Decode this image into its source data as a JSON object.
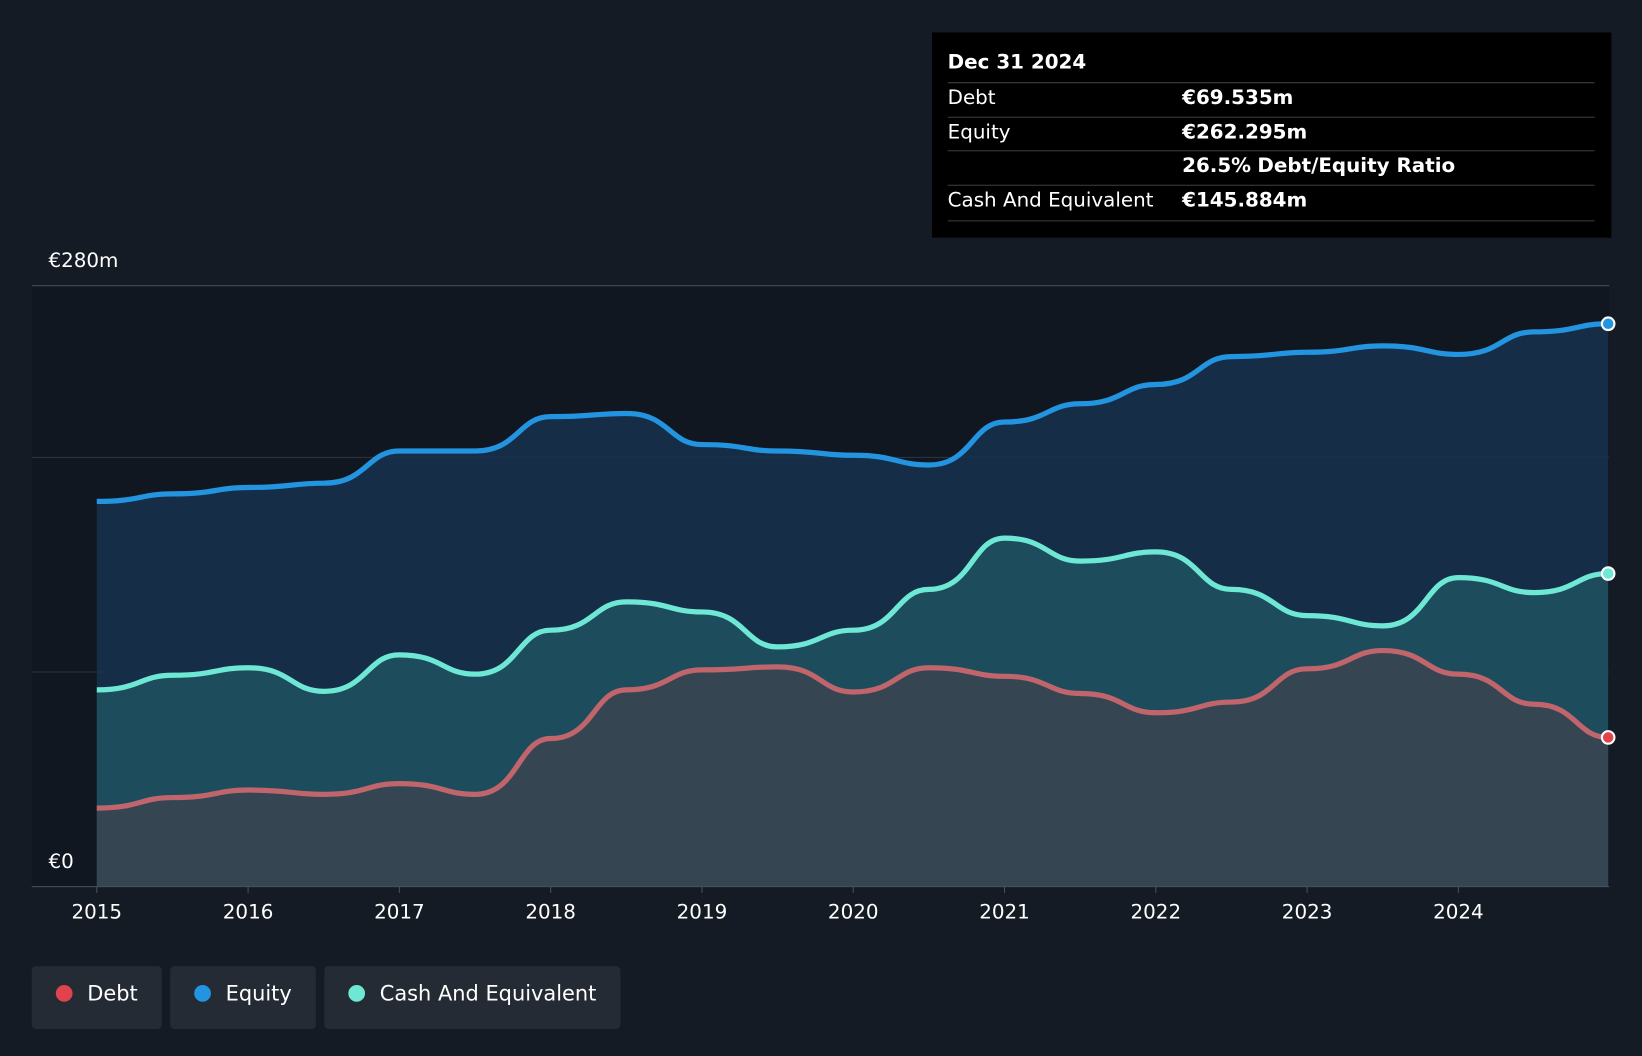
{
  "chart_data": {
    "type": "area-line",
    "x": [
      2015,
      2015.5,
      2016,
      2016.5,
      2017,
      2017.5,
      2018,
      2018.5,
      2019,
      2019.5,
      2020,
      2020.5,
      2021,
      2021.5,
      2022,
      2022.5,
      2023,
      2023.5,
      2024,
      2024.5,
      2024.99
    ],
    "xlim": [
      2014.57,
      2024.99
    ],
    "xticks": [
      2015,
      2016,
      2017,
      2018,
      2019,
      2020,
      2021,
      2022,
      2023,
      2024
    ],
    "ylim": [
      0,
      280
    ],
    "yticks": [
      {
        "value": 0,
        "label": "€0"
      },
      {
        "value": 280,
        "label": "€280m"
      }
    ],
    "grid_lines": [
      100,
      200,
      280
    ],
    "series": [
      {
        "name": "Debt",
        "color": "#e0434b",
        "line_color": "#c0656c",
        "values": [
          36.6,
          41.5,
          45,
          43,
          48,
          43,
          69,
          91.7,
          101,
          102.4,
          90.7,
          102,
          98,
          90,
          81,
          86,
          101.5,
          110,
          99,
          85,
          69.535
        ]
      },
      {
        "name": "Equity",
        "color": "#2394df",
        "line_color": "#2394df",
        "values": [
          179.5,
          183,
          186,
          188,
          203,
          203,
          219,
          220.5,
          206,
          203,
          201,
          196.5,
          216.5,
          225,
          234,
          247,
          249,
          252,
          248,
          258.5,
          262.295
        ]
      },
      {
        "name": "Cash And Equivalent",
        "color": "#6ee7d5",
        "line_color": "#6ee7d5",
        "values": [
          91.7,
          98.5,
          102,
          91,
          108,
          99,
          119.5,
          132.7,
          128,
          111.7,
          119.5,
          138.5,
          162.4,
          151.7,
          156,
          138.5,
          126.3,
          121.5,
          144,
          137,
          145.884
        ]
      }
    ],
    "tooltip": {
      "date": "Dec 31 2024",
      "rows": [
        {
          "label": "Debt",
          "value": "€69.535m"
        },
        {
          "label": "Equity",
          "value": "€262.295m"
        },
        {
          "value": "26.5%",
          "note": "Debt/Equity Ratio"
        },
        {
          "label": "Cash And Equivalent",
          "value": "€145.884m"
        }
      ]
    }
  }
}
